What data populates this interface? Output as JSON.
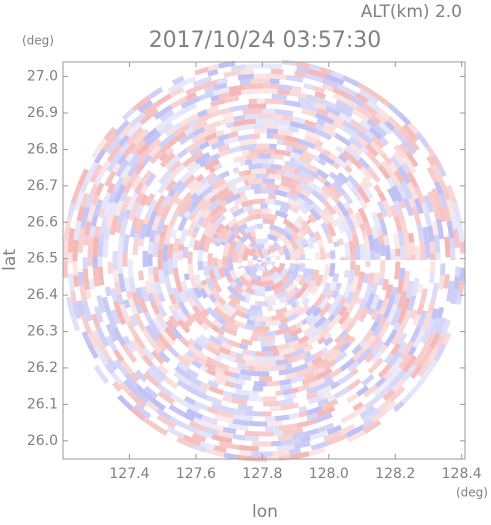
{
  "chart_data": {
    "type": "ppi",
    "title": "2017/10/24 03:57:30",
    "altitude_label": "ALT(km) 2.0",
    "xlabel": "lon",
    "ylabel": "lat",
    "xunit": "(deg)",
    "yunit": "(deg)",
    "xlim": [
      127.2,
      128.41
    ],
    "ylim": [
      25.95,
      27.04
    ],
    "xticks": [
      127.4,
      127.6,
      127.8,
      128.0,
      128.2,
      128.4
    ],
    "yticks": [
      {
        "value": 26.0,
        "label": "26.0"
      },
      26.1,
      26.2,
      26.3,
      26.4,
      26.5,
      26.6,
      26.7,
      26.8,
      26.9,
      {
        "value": 27.0,
        "label": "27.0"
      }
    ],
    "xticks_labels": [
      "127.4",
      "127.6",
      "127.8",
      "128.0",
      "128.2",
      "128.4"
    ],
    "colors": {
      "positive": "#f2a9a9",
      "negative": "#b3b3f2"
    }
  }
}
